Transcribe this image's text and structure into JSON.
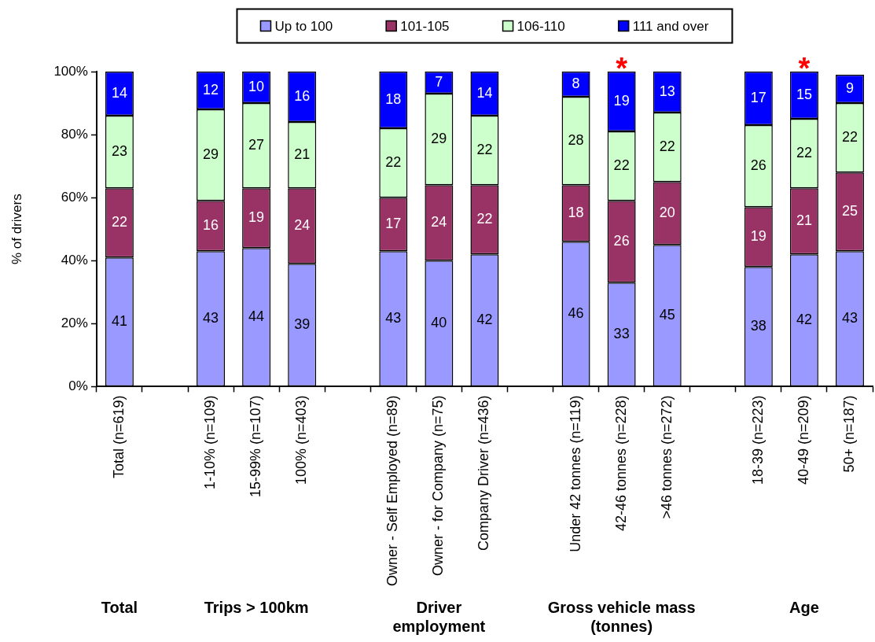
{
  "chart_data": {
    "type": "bar",
    "stacked": true,
    "categories": [
      "Total (n=619)",
      null,
      "1-10% (n=109)",
      "15-99% (n=107)",
      "100% (n=403)",
      null,
      "Owner - Self Employed (n=89)",
      "Owner - for Company (n=75)",
      "Company Driver (n=436)",
      null,
      "Under 42 tonnes (n=119)",
      "42-46 tonnes (n=228)",
      ">46 tonnes (n=272)",
      null,
      "18-39 (n=223)",
      "40-49 (n=209)",
      "50+ (n=187)"
    ],
    "series": [
      {
        "name": "Up to 100",
        "color": "#9999ff",
        "values": [
          41,
          null,
          43,
          44,
          39,
          null,
          43,
          40,
          42,
          null,
          46,
          33,
          45,
          null,
          38,
          42,
          43
        ]
      },
      {
        "name": "101-105",
        "color": "#993366",
        "values": [
          22,
          null,
          16,
          19,
          24,
          null,
          17,
          24,
          22,
          null,
          18,
          26,
          20,
          null,
          19,
          21,
          25
        ]
      },
      {
        "name": "106-110",
        "color": "#ccffcc",
        "values": [
          23,
          null,
          29,
          27,
          21,
          null,
          22,
          29,
          22,
          null,
          28,
          22,
          22,
          null,
          26,
          22,
          22
        ]
      },
      {
        "name": "111 and over",
        "color": "#0000ff",
        "values": [
          14,
          null,
          12,
          10,
          16,
          null,
          18,
          7,
          14,
          null,
          8,
          19,
          13,
          null,
          17,
          15,
          9
        ]
      }
    ],
    "ylabel": "% of drivers",
    "ylim": [
      0,
      100
    ],
    "yticks": [
      {
        "value": 0,
        "label": "0%"
      },
      {
        "value": 20,
        "label": "20%"
      },
      {
        "value": 40,
        "label": "40%"
      },
      {
        "value": 60,
        "label": "60%"
      },
      {
        "value": 80,
        "label": "80%"
      },
      {
        "value": 100,
        "label": "100%"
      }
    ],
    "grid": false,
    "legend": "top",
    "data_labels": true,
    "annotations": [
      "Total",
      "Trips > 100km",
      "Driver\nemployment",
      "Gross vehicle mass\n(tonnes)",
      "Age",
      {
        "text": "*",
        "x": "42-46 tonnes (n=228)",
        "y": 100
      },
      {
        "text": "*",
        "x": "40-49 (n=209)",
        "y": 100
      }
    ]
  }
}
